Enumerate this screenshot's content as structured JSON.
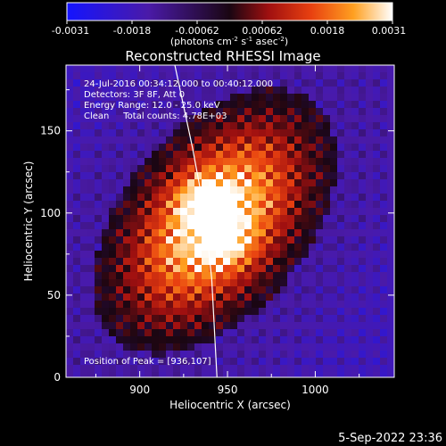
{
  "chart_data": {
    "type": "heatmap",
    "title": "Reconstructed RHESSI Image",
    "xlabel": "Heliocentric X (arcsec)",
    "ylabel": "Heliocentric Y (arcsec)",
    "xlim": [
      858,
      1045
    ],
    "ylim": [
      0,
      190
    ],
    "x_ticks": [
      900,
      950,
      1000
    ],
    "y_ticks": [
      0,
      50,
      100,
      150
    ],
    "colorbar": {
      "ticks": [
        "-0.0031",
        "-0.0018",
        "-0.00062",
        "0.00062",
        "0.0018",
        "0.0031"
      ],
      "range": [
        -0.0031,
        0.0031
      ],
      "unit_label": {
        "open": "(photons cm",
        "exp1": "-2",
        "mid1": " s",
        "exp2": "-1",
        "mid2": " asec",
        "exp3": "-2",
        "close": ")"
      }
    },
    "annotations": {
      "time": "24-Jul-2016 00:34:12.000 to 00:40:12.000",
      "detectors": "Detectors: 3F 8F, Att 0",
      "energy": "Energy Range: 12.0 - 25.0 keV",
      "clean": "Clean     Total counts: 4.78E+03",
      "peak": "Position of Peak = [936,107]"
    },
    "source": {
      "peak_x": 936,
      "peak_y": 107,
      "secondary_x": 950,
      "secondary_y": 83
    },
    "limb_curve": [
      [
        920,
        190
      ],
      [
        930,
        140
      ],
      [
        937,
        100
      ],
      [
        941,
        60
      ],
      [
        944,
        0
      ]
    ]
  },
  "footer": {
    "date": "5-Sep-2022 23:36"
  }
}
